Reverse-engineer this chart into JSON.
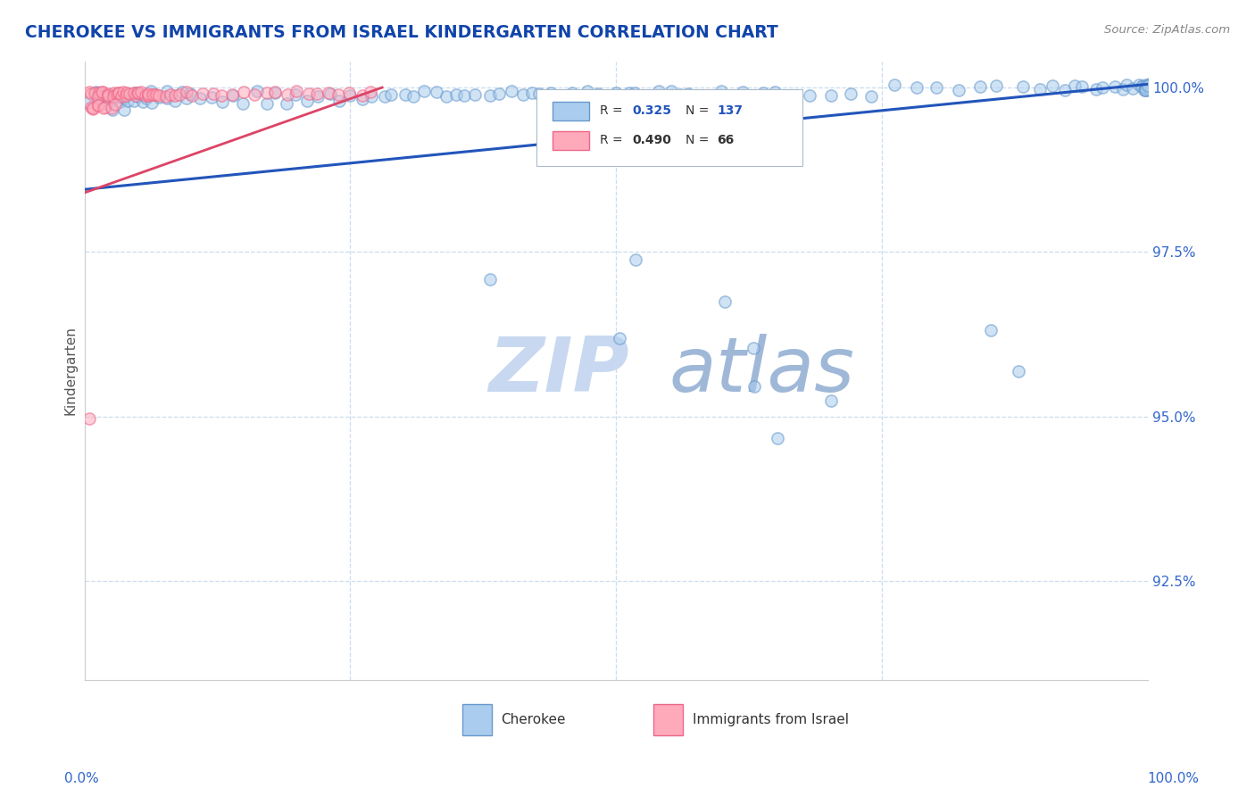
{
  "title": "CHEROKEE VS IMMIGRANTS FROM ISRAEL KINDERGARTEN CORRELATION CHART",
  "source_text": "Source: ZipAtlas.com",
  "ylabel": "Kindergarten",
  "legend_R_blue": "0.325",
  "legend_N_blue": "137",
  "legend_R_pink": "0.490",
  "legend_N_pink": "66",
  "watermark1": "ZIP",
  "watermark2": "atlas",
  "xlim": [
    0.0,
    1.0
  ],
  "ylim": [
    0.91,
    1.004
  ],
  "ytick_values": [
    1.0,
    0.975,
    0.95,
    0.925
  ],
  "ytick_labels": [
    "100.0%",
    "97.5%",
    "95.0%",
    "92.5%"
  ],
  "blue_line_color": "#2255bb",
  "pink_line_color": "#dd4466",
  "blue_dot_facecolor": "#aaccee",
  "blue_dot_edgecolor": "#6699cc",
  "pink_dot_facecolor": "#ffaabb",
  "pink_dot_edgecolor": "#ee6688",
  "background_color": "#ffffff",
  "grid_color": "#ccddee",
  "title_color": "#1144aa",
  "watermark_color1": "#c8d8f0",
  "watermark_color2": "#a0b8d8",
  "dot_size": 90,
  "dot_alpha": 0.55,
  "dot_linewidth": 1.2,
  "blue_trend_x": [
    0.0,
    1.0
  ],
  "blue_trend_y": [
    0.9845,
    1.0005
  ],
  "pink_trend_x": [
    0.0,
    0.28
  ],
  "pink_trend_y": [
    0.984,
    1.0
  ],
  "blue_x": [
    0.005,
    0.01,
    0.012,
    0.015,
    0.018,
    0.02,
    0.022,
    0.025,
    0.028,
    0.03,
    0.032,
    0.035,
    0.038,
    0.04,
    0.042,
    0.045,
    0.048,
    0.05,
    0.052,
    0.055,
    0.058,
    0.06,
    0.065,
    0.07,
    0.075,
    0.08,
    0.085,
    0.09,
    0.095,
    0.1,
    0.11,
    0.12,
    0.13,
    0.14,
    0.15,
    0.16,
    0.17,
    0.18,
    0.19,
    0.2,
    0.21,
    0.22,
    0.23,
    0.24,
    0.25,
    0.26,
    0.27,
    0.28,
    0.29,
    0.3,
    0.31,
    0.32,
    0.33,
    0.34,
    0.35,
    0.36,
    0.37,
    0.38,
    0.39,
    0.4,
    0.41,
    0.42,
    0.43,
    0.44,
    0.45,
    0.46,
    0.47,
    0.48,
    0.49,
    0.5,
    0.51,
    0.52,
    0.53,
    0.54,
    0.55,
    0.56,
    0.57,
    0.58,
    0.6,
    0.62,
    0.64,
    0.65,
    0.66,
    0.68,
    0.7,
    0.72,
    0.74,
    0.76,
    0.78,
    0.8,
    0.82,
    0.84,
    0.86,
    0.88,
    0.9,
    0.91,
    0.92,
    0.93,
    0.94,
    0.95,
    0.96,
    0.97,
    0.975,
    0.98,
    0.985,
    0.99,
    0.993,
    0.995,
    0.997,
    0.999,
    1.0,
    1.0,
    1.0,
    1.0,
    1.0,
    1.0,
    1.0,
    1.0,
    1.0,
    1.0,
    1.0,
    1.0,
    1.0,
    1.0,
    1.0,
    1.0,
    1.0,
    0.38,
    0.5,
    0.63,
    0.52,
    0.6,
    0.85,
    0.88,
    0.63,
    0.65,
    0.7
  ],
  "blue_y": [
    0.998,
    0.999,
    0.999,
    0.998,
    0.999,
    0.998,
    0.999,
    0.998,
    0.997,
    0.999,
    0.998,
    0.999,
    0.997,
    0.999,
    0.998,
    0.999,
    0.998,
    0.999,
    0.998,
    0.999,
    0.998,
    0.999,
    0.998,
    0.999,
    0.998,
    0.999,
    0.998,
    0.999,
    0.998,
    0.999,
    0.998,
    0.999,
    0.998,
    0.999,
    0.998,
    0.999,
    0.998,
    0.999,
    0.998,
    0.999,
    0.998,
    0.999,
    0.999,
    0.998,
    0.999,
    0.998,
    0.999,
    0.999,
    0.999,
    0.999,
    0.999,
    0.999,
    0.999,
    0.999,
    0.999,
    0.999,
    0.999,
    0.999,
    0.999,
    0.999,
    0.999,
    0.999,
    0.999,
    0.999,
    0.999,
    0.999,
    0.999,
    0.999,
    0.999,
    0.999,
    0.999,
    0.999,
    0.999,
    0.999,
    0.999,
    0.999,
    0.999,
    0.999,
    0.999,
    0.999,
    0.999,
    0.999,
    0.999,
    0.999,
    0.999,
    0.999,
    0.999,
    1.0,
    1.0,
    1.0,
    1.0,
    1.0,
    1.0,
    1.0,
    1.0,
    1.0,
    1.0,
    1.0,
    1.0,
    1.0,
    1.0,
    1.0,
    1.0,
    1.0,
    1.0,
    1.0,
    1.0,
    1.0,
    1.0,
    1.0,
    1.0,
    1.0,
    1.0,
    1.0,
    1.0,
    1.0,
    1.0,
    1.0,
    1.0,
    1.0,
    1.0,
    1.0,
    1.0,
    1.0,
    1.0,
    1.0,
    1.0,
    0.971,
    0.962,
    0.96,
    0.974,
    0.967,
    0.963,
    0.957,
    0.955,
    0.947,
    0.952
  ],
  "pink_x": [
    0.005,
    0.008,
    0.01,
    0.012,
    0.014,
    0.016,
    0.018,
    0.02,
    0.022,
    0.024,
    0.026,
    0.028,
    0.03,
    0.032,
    0.034,
    0.036,
    0.038,
    0.04,
    0.042,
    0.044,
    0.046,
    0.048,
    0.05,
    0.052,
    0.054,
    0.056,
    0.058,
    0.06,
    0.062,
    0.064,
    0.066,
    0.068,
    0.07,
    0.075,
    0.08,
    0.085,
    0.09,
    0.095,
    0.1,
    0.11,
    0.12,
    0.13,
    0.14,
    0.15,
    0.16,
    0.17,
    0.18,
    0.19,
    0.2,
    0.21,
    0.22,
    0.23,
    0.24,
    0.25,
    0.26,
    0.27,
    0.005,
    0.008,
    0.01,
    0.012,
    0.015,
    0.018,
    0.02,
    0.025,
    0.03,
    0.005
  ],
  "pink_y": [
    0.999,
    0.999,
    0.999,
    0.999,
    0.999,
    0.999,
    0.999,
    0.999,
    0.999,
    0.999,
    0.999,
    0.999,
    0.999,
    0.999,
    0.999,
    0.999,
    0.999,
    0.999,
    0.999,
    0.999,
    0.999,
    0.999,
    0.999,
    0.999,
    0.999,
    0.999,
    0.999,
    0.999,
    0.999,
    0.999,
    0.999,
    0.999,
    0.999,
    0.999,
    0.999,
    0.999,
    0.999,
    0.999,
    0.999,
    0.999,
    0.999,
    0.999,
    0.999,
    0.999,
    0.999,
    0.999,
    0.999,
    0.999,
    0.999,
    0.999,
    0.999,
    0.999,
    0.999,
    0.999,
    0.999,
    0.999,
    0.997,
    0.997,
    0.997,
    0.997,
    0.997,
    0.997,
    0.997,
    0.997,
    0.997,
    0.95
  ]
}
